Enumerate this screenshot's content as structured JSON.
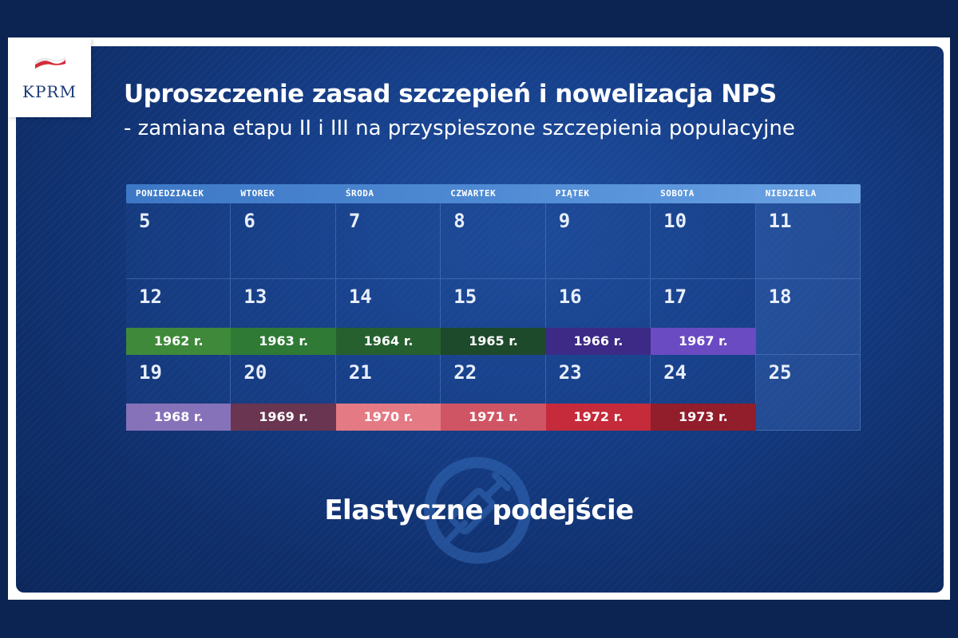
{
  "logo": {
    "text": "KPRM"
  },
  "title": "Uproszczenie zasad szczepień i nowelizacja NPS",
  "subtitle": "- zamiana etapu II i III na przyspieszone szczepienia populacyjne",
  "calendar": {
    "days": [
      "PONIEDZIAŁEK",
      "WTOREK",
      "ŚRODA",
      "CZWARTEK",
      "PIĄTEK",
      "SOBOTA",
      "NIEDZIELA"
    ],
    "weeks": [
      {
        "dates": [
          "5",
          "6",
          "7",
          "8",
          "9",
          "10",
          "11"
        ],
        "years": []
      },
      {
        "dates": [
          "12",
          "13",
          "14",
          "15",
          "16",
          "17",
          "18"
        ],
        "years": [
          {
            "label": "1962 r.",
            "color": "#3f8a3a"
          },
          {
            "label": "1963 r.",
            "color": "#2f7a35"
          },
          {
            "label": "1964 r.",
            "color": "#26602f"
          },
          {
            "label": "1965 r.",
            "color": "#1d4a2a"
          },
          {
            "label": "1966 r.",
            "color": "#3c2a86"
          },
          {
            "label": "1967 r.",
            "color": "#6a4bc2"
          }
        ]
      },
      {
        "dates": [
          "19",
          "20",
          "21",
          "22",
          "23",
          "24",
          "25"
        ],
        "years": [
          {
            "label": "1968 r.",
            "color": "#8672b8"
          },
          {
            "label": "1969 r.",
            "color": "#6a3550"
          },
          {
            "label": "1970 r.",
            "color": "#e47a84"
          },
          {
            "label": "1971 r.",
            "color": "#d05564"
          },
          {
            "label": "1972 r.",
            "color": "#c52b3a"
          },
          {
            "label": "1973 r.",
            "color": "#921d2b"
          }
        ]
      }
    ]
  },
  "footer": "Elastyczne podejście"
}
